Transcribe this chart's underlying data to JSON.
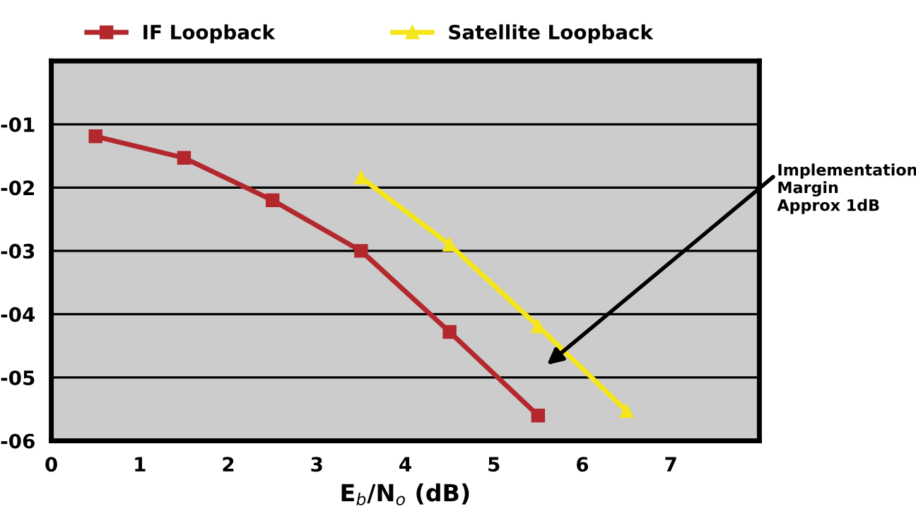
{
  "chart_data": {
    "type": "line",
    "xlabel": "E$_{b}$/N$_{o}$ (dB)",
    "xlim": [
      0,
      8
    ],
    "xticks": [
      0,
      1,
      2,
      3,
      4,
      5,
      6,
      7
    ],
    "ylim": [
      -6,
      0
    ],
    "yticks": [
      {
        "value": -6,
        "label": "-06"
      },
      {
        "value": -5,
        "label": "-05"
      },
      {
        "value": -4,
        "label": "-04"
      },
      {
        "value": -3,
        "label": "-03"
      },
      {
        "value": -2,
        "label": "-02"
      },
      {
        "value": -1,
        "label": "-01"
      }
    ],
    "grid": "y",
    "legend": "top",
    "series": [
      {
        "name": "IF Loopback",
        "color": "#b3282d",
        "marker": "square",
        "x": [
          0.5,
          1.5,
          2.5,
          3.5,
          4.5,
          5.5
        ],
        "values": [
          -1.19,
          -1.53,
          -2.2,
          -3.0,
          -4.28,
          -5.6
        ]
      },
      {
        "name": "Satellite Loopback",
        "color": "#f5e51b",
        "marker": "triangle",
        "x": [
          3.5,
          4.5,
          5.5,
          6.5
        ],
        "values": [
          -1.84,
          -2.9,
          -4.19,
          -5.53
        ]
      }
    ],
    "annotations": [
      "Implementation\nMargin\nApprox 1dB"
    ]
  }
}
